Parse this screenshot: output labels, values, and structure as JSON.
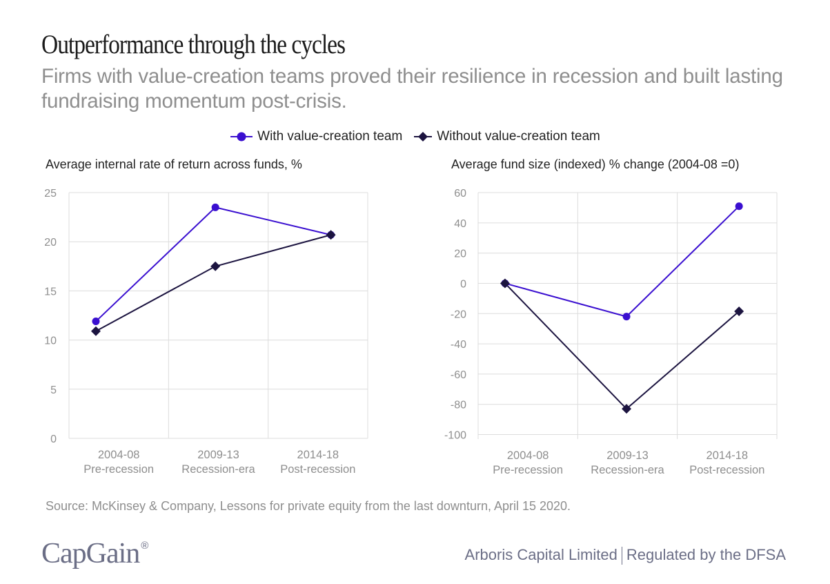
{
  "header": {
    "title": "Outperformance through the cycles",
    "subtitle": "Firms with value-creation teams proved their resilience in recession and built lasting fundraising momentum post-crisis."
  },
  "legend": [
    {
      "name": "With value-creation team",
      "marker": "circle",
      "color": "#3a0fd0"
    },
    {
      "name": "Without value-creation team",
      "marker": "diamond",
      "color": "#1c1440"
    }
  ],
  "chart_data": [
    {
      "type": "line",
      "title": "Average internal rate of return across funds, %",
      "categories": [
        "2004-08",
        "2009-13",
        "2014-18"
      ],
      "category_sublabels": [
        "Pre-recession",
        "Recession-era",
        "Post-recession"
      ],
      "ylim": [
        0,
        25
      ],
      "yticks": [
        0,
        5,
        10,
        15,
        20,
        25
      ],
      "grid": true,
      "legend_position": "top-center",
      "xlabel": "",
      "ylabel": "",
      "series": [
        {
          "name": "With value-creation team",
          "values": [
            11.9,
            23.5,
            20.7
          ]
        },
        {
          "name": "Without value-creation team",
          "values": [
            10.9,
            17.5,
            20.7
          ]
        }
      ]
    },
    {
      "type": "line",
      "title": "Average fund size (indexed) % change (2004-08 =0)",
      "categories": [
        "2004-08",
        "2009-13",
        "2014-18"
      ],
      "category_sublabels": [
        "Pre-recession",
        "Recession-era",
        "Post-recession"
      ],
      "ylim": [
        -100,
        60
      ],
      "yticks": [
        -100,
        -80,
        -60,
        -40,
        -20,
        0,
        20,
        40,
        60
      ],
      "grid": true,
      "legend_position": "top-center",
      "xlabel": "",
      "ylabel": "",
      "series": [
        {
          "name": "With value-creation team",
          "values": [
            0,
            -22,
            51
          ]
        },
        {
          "name": "Without value-creation team",
          "values": [
            0,
            -83,
            -18.5
          ]
        }
      ]
    }
  ],
  "footer": {
    "source": "Source: McKinsey & Company, Lessons for private equity from the last downturn, April 15 2020.",
    "logo_text": "CapGain",
    "logo_mark": "®",
    "company": "Arboris Capital Limited",
    "regulator": "Regulated by the DFSA"
  },
  "colors": {
    "with_team": "#3a0fd0",
    "without_team": "#1c1440",
    "grid": "#dcdcdc",
    "tick_text": "#8e8e8e"
  }
}
